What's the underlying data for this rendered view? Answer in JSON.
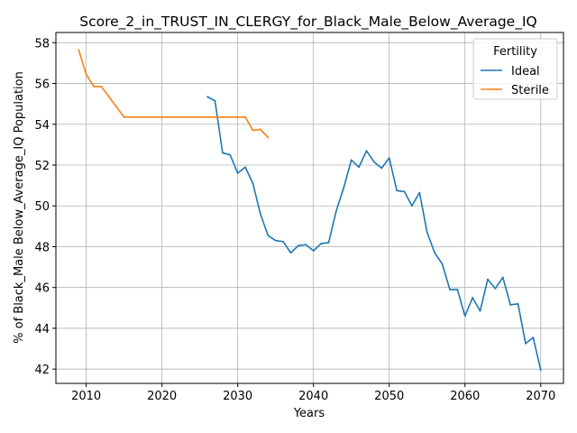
{
  "chart_data": {
    "type": "line",
    "title": "Score_2_in_TRUST_IN_CLERGY_for_Black_Male_Below_Average_IQ",
    "xlabel": "Years",
    "ylabel": "% of Black_Male Below_Average_IQ Population",
    "xlim": [
      2006,
      2073
    ],
    "ylim": [
      41.3,
      58.5
    ],
    "xticks": [
      2010,
      2020,
      2030,
      2040,
      2050,
      2060,
      2070
    ],
    "yticks": [
      42,
      44,
      46,
      48,
      50,
      52,
      54,
      56,
      58
    ],
    "grid": true,
    "legend": {
      "title": "Fertility",
      "placement": "top-right"
    },
    "series": [
      {
        "name": "Ideal",
        "color": "#1f77b4",
        "x": [
          2026,
          2027,
          2028,
          2029,
          2030,
          2031,
          2032,
          2033,
          2034,
          2035,
          2036,
          2037,
          2038,
          2039,
          2040,
          2041,
          2042,
          2043,
          2044,
          2045,
          2046,
          2047,
          2048,
          2049,
          2050,
          2051,
          2052,
          2053,
          2054,
          2055,
          2056,
          2057,
          2058,
          2059,
          2060,
          2061,
          2062,
          2063,
          2064,
          2065,
          2066,
          2067,
          2068,
          2069,
          2070
        ],
        "y": [
          55.35,
          55.15,
          52.6,
          52.5,
          51.6,
          51.9,
          51.1,
          49.6,
          48.55,
          48.3,
          48.25,
          47.7,
          48.05,
          48.1,
          47.8,
          48.15,
          48.2,
          49.75,
          50.9,
          52.25,
          51.9,
          52.7,
          52.15,
          51.85,
          52.35,
          50.75,
          50.7,
          50.0,
          50.65,
          48.7,
          47.7,
          47.15,
          45.9,
          45.9,
          44.6,
          45.5,
          44.85,
          46.4,
          45.95,
          46.5,
          45.15,
          45.2,
          43.25,
          43.55,
          41.95
        ]
      },
      {
        "name": "Sterile",
        "color": "#ff7f0e",
        "x": [
          2009,
          2010,
          2011,
          2012,
          2013,
          2014,
          2015,
          2016,
          2017,
          2018,
          2019,
          2020,
          2021,
          2022,
          2023,
          2024,
          2025,
          2026,
          2027,
          2028,
          2029,
          2030,
          2031,
          2032,
          2033,
          2034
        ],
        "y": [
          57.65,
          56.45,
          55.85,
          55.85,
          55.35,
          54.85,
          54.35,
          54.35,
          54.35,
          54.35,
          54.35,
          54.35,
          54.35,
          54.35,
          54.35,
          54.35,
          54.35,
          54.35,
          54.35,
          54.35,
          54.35,
          54.35,
          54.35,
          53.7,
          53.75,
          53.35
        ]
      }
    ]
  }
}
